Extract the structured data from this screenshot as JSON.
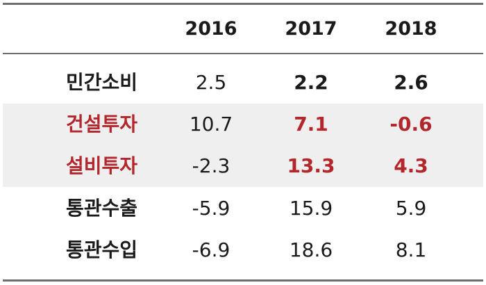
{
  "table": {
    "header": [
      "",
      "2016",
      "2017",
      "2018"
    ],
    "rows": [
      {
        "label": "민간소비",
        "v2016": "2.5",
        "v2017": "2.2",
        "v2018": "2.6"
      },
      {
        "label": "건설투자",
        "v2016": "10.7",
        "v2017": "7.1",
        "v2018": "-0.6"
      },
      {
        "label": "설비투자",
        "v2016": "-2.3",
        "v2017": "13.3",
        "v2018": "4.3"
      },
      {
        "label": "통관수출",
        "v2016": "-5.9",
        "v2017": "15.9",
        "v2018": "5.9"
      },
      {
        "label": "통관수입",
        "v2016": "-6.9",
        "v2017": "18.6",
        "v2018": "8.1"
      }
    ]
  },
  "colors": {
    "accent_red": "#b3262b",
    "shade": "#efefef",
    "rule": "#6e6e6e"
  }
}
